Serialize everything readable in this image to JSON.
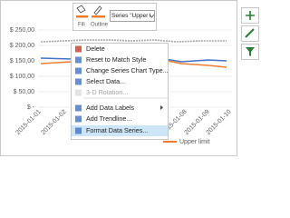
{
  "toolbar": {
    "fill": "Fill",
    "outline": "Outline",
    "series_dropdown": "Series \"Upper l"
  },
  "axis": {
    "y_labels": [
      "$ 250,00",
      "$ 200,00",
      "$ 150,00",
      "$ 100,00",
      "$ 50,00",
      "$ -"
    ],
    "x_labels": [
      "2015-01-01",
      "2015-01-02",
      "2015-01-08",
      "2015-01-09",
      "2015-01-10"
    ]
  },
  "legend": {
    "items": [
      "Upper limit"
    ]
  },
  "menu": {
    "items": [
      "Delete",
      "Reset to Match Style",
      "Change Series Chart Type...",
      "Select Data...",
      "3-D Rotation...",
      "Add Data Labels",
      "Add Trendline...",
      "Format Data Series..."
    ]
  }
}
